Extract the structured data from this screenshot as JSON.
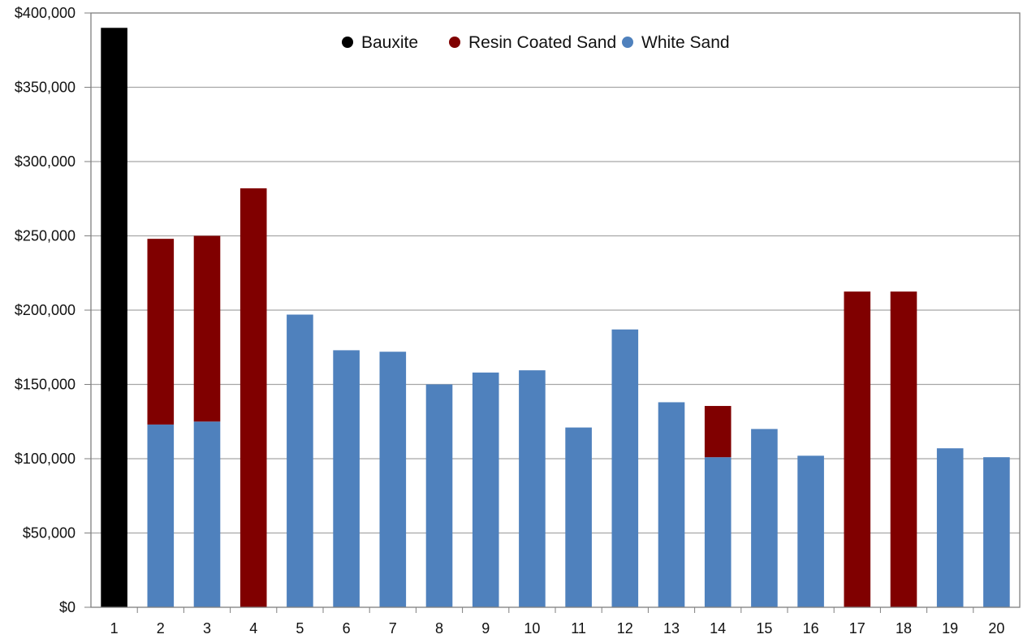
{
  "chart_data": {
    "type": "bar",
    "stacked": true,
    "title": "",
    "xlabel": "",
    "ylabel": "",
    "ylim": [
      0,
      400000
    ],
    "yticks": [
      0,
      50000,
      100000,
      150000,
      200000,
      250000,
      300000,
      350000,
      400000
    ],
    "ytick_labels": [
      "$0",
      "$50,000",
      "$100,000",
      "$150,000",
      "$200,000",
      "$250,000",
      "$300,000",
      "$350,000",
      "$400,000"
    ],
    "grid": true,
    "legend_position": "top-center",
    "categories": [
      "1",
      "2",
      "3",
      "4",
      "5",
      "6",
      "7",
      "8",
      "9",
      "10",
      "11",
      "12",
      "13",
      "14",
      "15",
      "16",
      "17",
      "18",
      "19",
      "20"
    ],
    "series": [
      {
        "name": "White Sand",
        "color": "#4f81bd",
        "values": [
          0,
          123000,
          125000,
          0,
          197000,
          173000,
          172000,
          150000,
          158000,
          159500,
          121000,
          187000,
          138000,
          101000,
          120000,
          102000,
          0,
          0,
          107000,
          101000
        ]
      },
      {
        "name": "Resin Coated Sand",
        "color": "#800000",
        "values": [
          0,
          125000,
          125000,
          282000,
          0,
          0,
          0,
          0,
          0,
          0,
          0,
          0,
          0,
          34500,
          0,
          0,
          212500,
          212500,
          0,
          0
        ]
      },
      {
        "name": "Bauxite",
        "color": "#000000",
        "values": [
          390000,
          0,
          0,
          0,
          0,
          0,
          0,
          0,
          0,
          0,
          0,
          0,
          0,
          0,
          0,
          0,
          0,
          0,
          0,
          0
        ]
      }
    ],
    "legend": [
      {
        "name": "Bauxite",
        "color": "#000000"
      },
      {
        "name": "Resin Coated Sand",
        "color": "#800000"
      },
      {
        "name": "White Sand",
        "color": "#4f81bd"
      }
    ]
  }
}
